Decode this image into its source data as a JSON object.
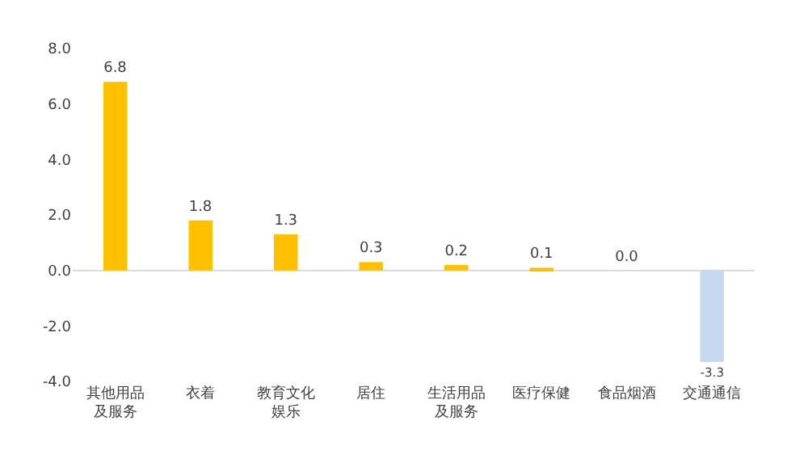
{
  "chart_data": {
    "type": "bar",
    "categories": [
      "其他用品及服务",
      "衣着",
      "教育文化娱乐",
      "居住",
      "生活用品及服务",
      "医疗保健",
      "食品烟酒",
      "交通通信"
    ],
    "values": [
      6.8,
      1.8,
      1.3,
      0.3,
      0.2,
      0.1,
      0.0,
      -3.3
    ],
    "value_labels": [
      "6.8",
      "1.8",
      "1.3",
      "0.3",
      "0.2",
      "0.1",
      "0.0",
      "-3.3"
    ],
    "colors": [
      "#ffc000",
      "#ffc000",
      "#ffc000",
      "#ffc000",
      "#ffc000",
      "#ffc000",
      "#ffc000",
      "#c5d9f1"
    ],
    "ylim": [
      -4,
      8
    ],
    "yticks": [
      {
        "value": -4,
        "label": "-4.0"
      },
      {
        "value": -2,
        "label": "-2.0"
      },
      {
        "value": 0,
        "label": "0.0"
      },
      {
        "value": 2,
        "label": "2.0"
      },
      {
        "value": 4,
        "label": "4.0"
      },
      {
        "value": 6,
        "label": "6.0"
      },
      {
        "value": 8,
        "label": "8.0"
      }
    ],
    "ref_lines": [
      {
        "axis": "y",
        "value": 0,
        "color": "#d9d9d9"
      }
    ],
    "grid": false,
    "legend": false
  }
}
